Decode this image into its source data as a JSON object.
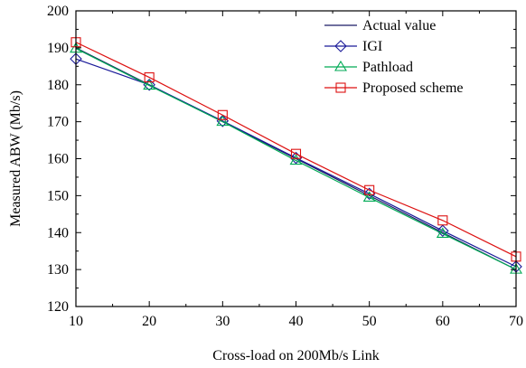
{
  "chart_data": {
    "type": "line",
    "title": "",
    "xlabel": "Cross-load on 200Mb/s Link",
    "ylabel": "Measured ABW (Mb/s)",
    "x": [
      10,
      20,
      30,
      40,
      50,
      60,
      70
    ],
    "xlim": [
      10,
      70
    ],
    "ylim": [
      120,
      200
    ],
    "xticks": [
      10,
      20,
      30,
      40,
      50,
      60,
      70
    ],
    "yticks": [
      120,
      130,
      140,
      150,
      160,
      170,
      180,
      190,
      200
    ],
    "grid": false,
    "legend_position": "top-right",
    "series": [
      {
        "name": "Actual value",
        "marker": "none",
        "color": "#1a1a66",
        "values": [
          190,
          180,
          170,
          160,
          150,
          140,
          130
        ]
      },
      {
        "name": "IGI",
        "marker": "diamond",
        "color": "#1a1a99",
        "values": [
          187,
          180,
          170.2,
          160.2,
          150.5,
          140.5,
          130.8
        ]
      },
      {
        "name": "Pathload",
        "marker": "triangle",
        "color": "#00aa55",
        "values": [
          189.8,
          179.8,
          170,
          159.5,
          149.5,
          139.7,
          130
        ]
      },
      {
        "name": "Proposed scheme",
        "marker": "square",
        "color": "#dd1111",
        "values": [
          191.5,
          182,
          171.8,
          161.3,
          151.5,
          143.3,
          133.5
        ]
      }
    ]
  }
}
